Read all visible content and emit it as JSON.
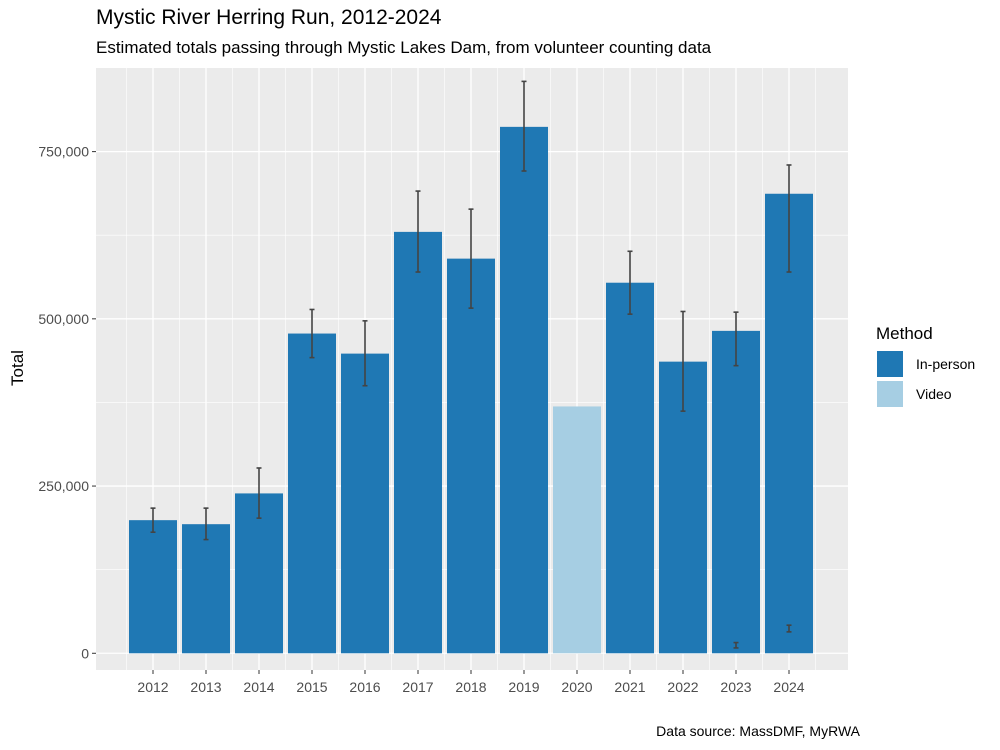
{
  "chart_data": {
    "type": "bar",
    "title": "Mystic River Herring Run, 2012-2024",
    "subtitle": "Estimated totals passing through Mystic Lakes Dam, from volunteer counting data",
    "caption": "Data source: MassDMF, MyRWA",
    "xlabel": "",
    "ylabel": "Total",
    "ylim": [
      -25000,
      875000
    ],
    "yticks": [
      0,
      250000,
      500000,
      750000
    ],
    "ytick_labels": [
      "0",
      "250,000",
      "500,000",
      "750,000"
    ],
    "categories": [
      "2012",
      "2013",
      "2014",
      "2015",
      "2016",
      "2017",
      "2018",
      "2019",
      "2020",
      "2021",
      "2022",
      "2023",
      "2024"
    ],
    "values": [
      199000,
      193000,
      239000,
      478000,
      448000,
      630000,
      590000,
      787000,
      369000,
      554000,
      436000,
      482000,
      687000
    ],
    "methods": [
      "In-person",
      "In-person",
      "In-person",
      "In-person",
      "In-person",
      "In-person",
      "In-person",
      "In-person",
      "Video",
      "In-person",
      "In-person",
      "In-person",
      "In-person"
    ],
    "error_low": [
      181000,
      170000,
      202000,
      442000,
      400000,
      570000,
      516000,
      721000,
      null,
      507000,
      362000,
      430000,
      570000
    ],
    "error_high": [
      217000,
      217000,
      277000,
      514000,
      497000,
      691000,
      664000,
      855000,
      null,
      601000,
      511000,
      510000,
      730000
    ],
    "extra_errorbars": [
      {
        "category": "2023",
        "low": 8000,
        "high": 16000
      },
      {
        "category": "2024",
        "low": 32000,
        "high": 42000
      }
    ],
    "legend": {
      "title": "Method",
      "position": "right",
      "entries": [
        {
          "label": "In-person",
          "color": "#1f78b4"
        },
        {
          "label": "Video",
          "color": "#a6cee3"
        }
      ]
    },
    "grid": true,
    "colors": {
      "In-person": "#1f78b4",
      "Video": "#a6cee3",
      "panel": "#ebebeb",
      "grid": "#ffffff",
      "errorbar": "#444444",
      "tick_text": "#4d4d4d"
    }
  }
}
